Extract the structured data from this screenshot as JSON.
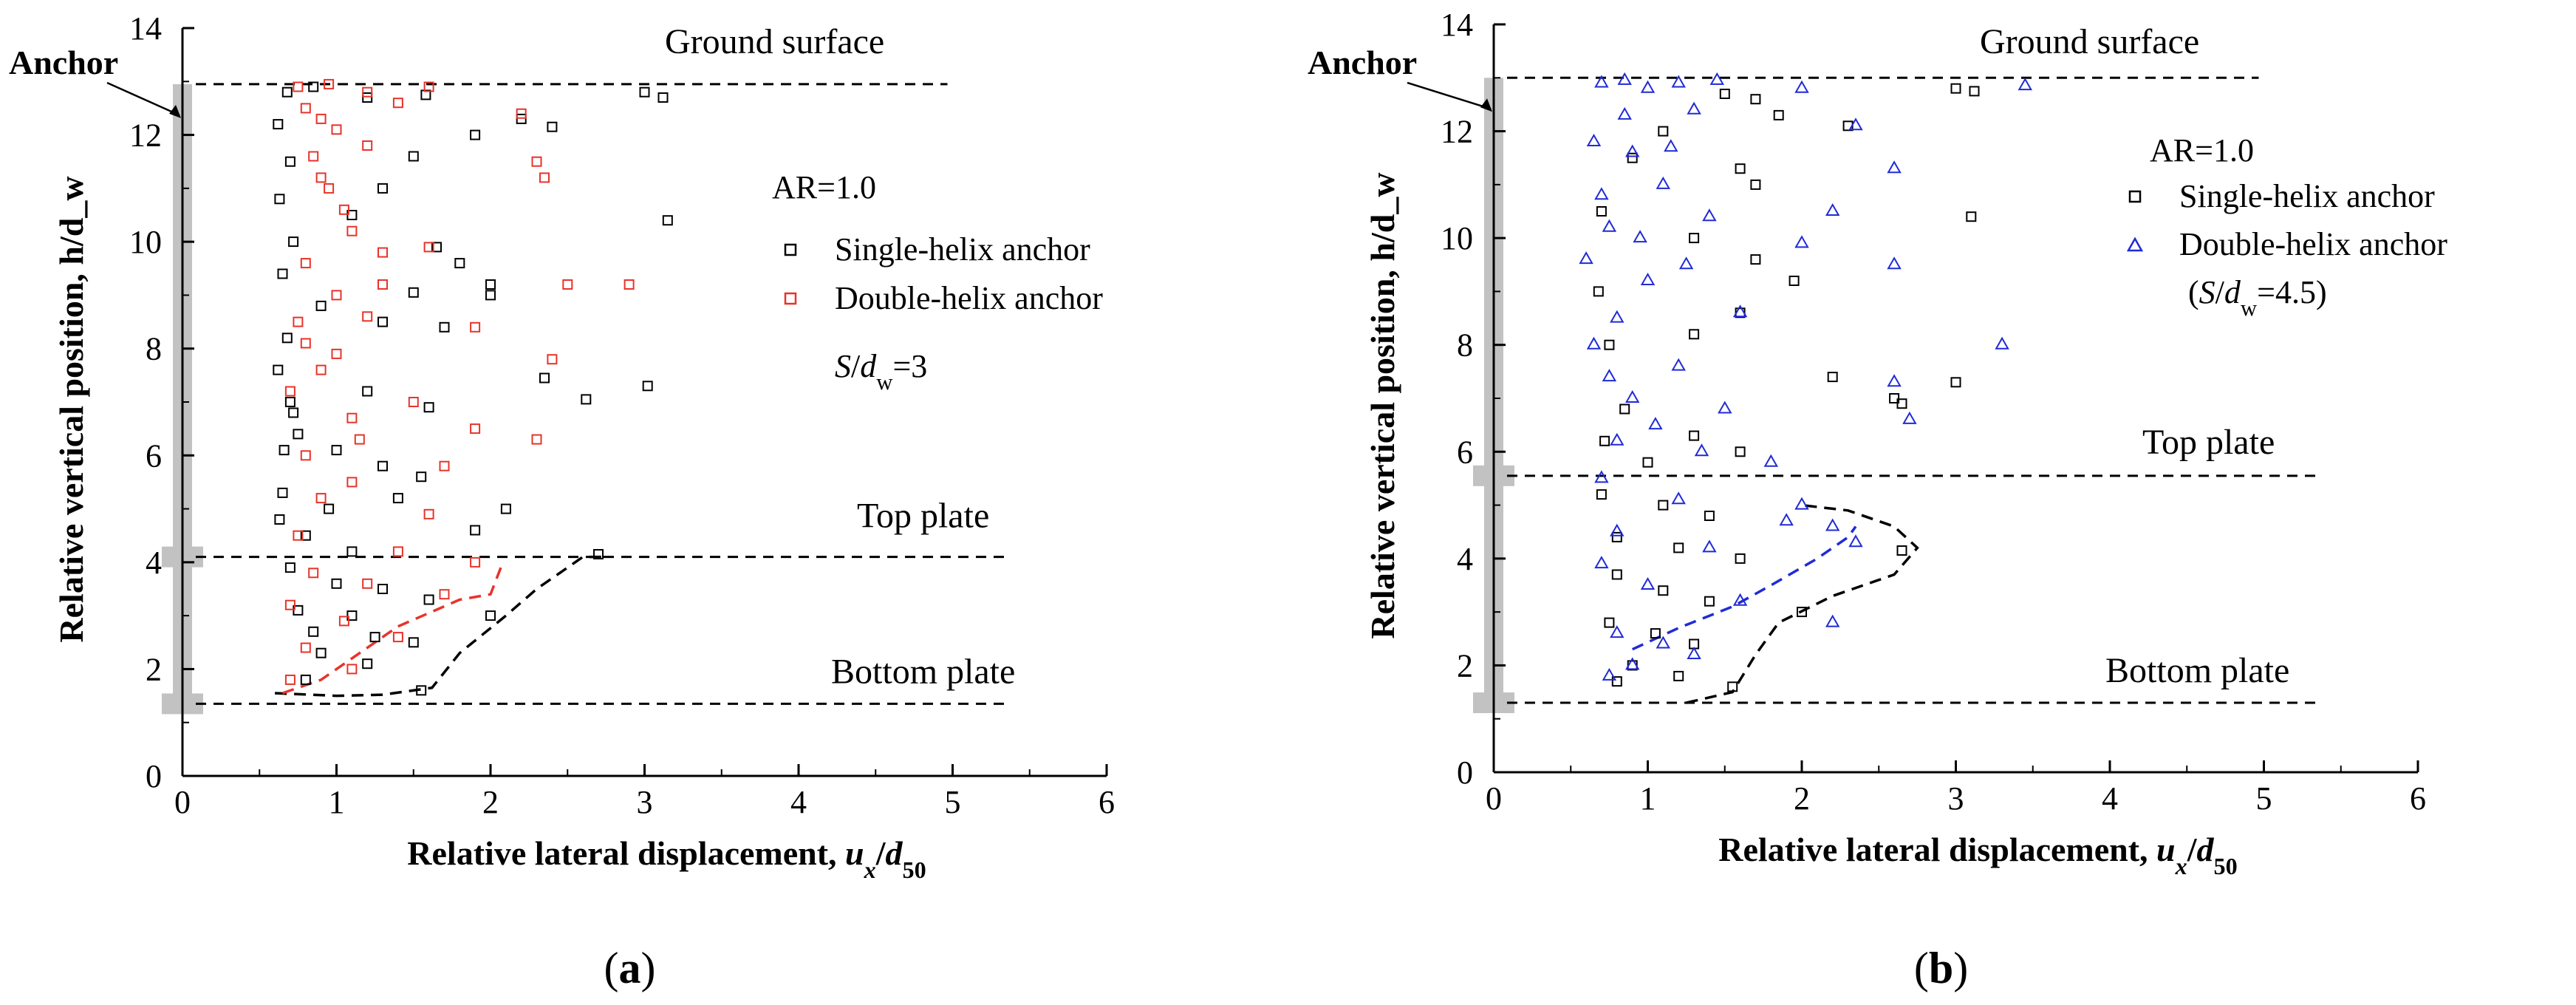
{
  "chart_data": [
    {
      "panel": "(a)",
      "type": "scatter",
      "xlabel": "Relative lateral displacement, u_x/d_50",
      "ylabel": "Relative vertical position, h/d_w",
      "xlim": [
        0,
        6
      ],
      "ylim": [
        0,
        14
      ],
      "xticks": [
        0,
        1,
        2,
        3,
        4,
        5,
        6
      ],
      "yticks": [
        0,
        2,
        4,
        6,
        8,
        10,
        12,
        14
      ],
      "annotations": {
        "anchor": "Anchor",
        "ground": "Ground surface",
        "top_plate": "Top plate",
        "bottom_plate": "Bottom plate",
        "ar": "AR=1.0",
        "spacing": "S/d_w=3"
      },
      "levels": {
        "ground": 12.95,
        "top_plate": 4.1,
        "bottom_plate": 1.35
      },
      "series": [
        {
          "name": "Single-helix anchor",
          "marker": "square",
          "color": "#000000",
          "envelope": [
            [
              0.6,
              1.55
            ],
            [
              1.0,
              1.5
            ],
            [
              1.3,
              1.52
            ],
            [
              1.62,
              1.65
            ],
            [
              1.8,
              2.3
            ],
            [
              2.1,
              3.0
            ],
            [
              2.3,
              3.5
            ],
            [
              2.6,
              4.1
            ],
            [
              2.75,
              4.1
            ]
          ],
          "points": [
            [
              0.68,
              12.8
            ],
            [
              0.85,
              12.9
            ],
            [
              1.2,
              12.7
            ],
            [
              1.58,
              12.75
            ],
            [
              2.2,
              12.3
            ],
            [
              2.4,
              12.15
            ],
            [
              3.0,
              12.8
            ],
            [
              3.12,
              12.7
            ],
            [
              1.9,
              12.0
            ],
            [
              1.5,
              11.6
            ],
            [
              1.3,
              11.0
            ],
            [
              1.1,
              10.5
            ],
            [
              3.15,
              10.4
            ],
            [
              1.65,
              9.9
            ],
            [
              1.8,
              9.6
            ],
            [
              2.0,
              9.2
            ],
            [
              1.5,
              9.05
            ],
            [
              2.0,
              9.0
            ],
            [
              1.3,
              8.5
            ],
            [
              1.7,
              8.4
            ],
            [
              0.9,
              8.8
            ],
            [
              2.35,
              7.45
            ],
            [
              2.62,
              7.05
            ],
            [
              3.02,
              7.3
            ],
            [
              0.7,
              7.0
            ],
            [
              1.2,
              7.2
            ],
            [
              1.6,
              6.9
            ],
            [
              0.75,
              6.4
            ],
            [
              1.0,
              6.1
            ],
            [
              1.3,
              5.8
            ],
            [
              1.55,
              5.6
            ],
            [
              0.65,
              5.3
            ],
            [
              0.95,
              5.0
            ],
            [
              1.4,
              5.2
            ],
            [
              2.1,
              5.0
            ],
            [
              1.9,
              4.6
            ],
            [
              0.8,
              4.5
            ],
            [
              1.1,
              4.2
            ],
            [
              0.7,
              3.9
            ],
            [
              1.0,
              3.6
            ],
            [
              1.3,
              3.5
            ],
            [
              1.6,
              3.3
            ],
            [
              0.75,
              3.1
            ],
            [
              1.1,
              3.0
            ],
            [
              2.0,
              3.0
            ],
            [
              0.85,
              2.7
            ],
            [
              1.25,
              2.6
            ],
            [
              1.5,
              2.5
            ],
            [
              0.9,
              2.3
            ],
            [
              1.2,
              2.1
            ],
            [
              0.8,
              1.8
            ],
            [
              1.55,
              1.6
            ],
            [
              2.7,
              4.15
            ],
            [
              0.62,
              12.2
            ],
            [
              0.7,
              11.5
            ],
            [
              0.63,
              10.8
            ],
            [
              0.72,
              10.0
            ],
            [
              0.65,
              9.4
            ],
            [
              0.68,
              8.2
            ],
            [
              0.62,
              7.6
            ],
            [
              0.72,
              6.8
            ],
            [
              0.66,
              6.1
            ],
            [
              0.63,
              4.8
            ]
          ]
        },
        {
          "name": "Double-helix anchor",
          "marker": "square",
          "color": "#e8332a",
          "envelope": [
            [
              0.65,
              1.55
            ],
            [
              0.9,
              1.8
            ],
            [
              1.1,
              2.2
            ],
            [
              1.4,
              2.8
            ],
            [
              1.8,
              3.3
            ],
            [
              2.0,
              3.4
            ],
            [
              2.08,
              4.0
            ]
          ],
          "points": [
            [
              0.75,
              12.9
            ],
            [
              0.95,
              12.95
            ],
            [
              1.2,
              12.8
            ],
            [
              1.6,
              12.9
            ],
            [
              1.4,
              12.6
            ],
            [
              2.2,
              12.4
            ],
            [
              2.3,
              11.5
            ],
            [
              2.35,
              11.2
            ],
            [
              1.2,
              11.8
            ],
            [
              0.9,
              11.2
            ],
            [
              1.05,
              10.6
            ],
            [
              1.3,
              9.8
            ],
            [
              1.6,
              9.9
            ],
            [
              2.5,
              9.2
            ],
            [
              2.9,
              9.2
            ],
            [
              1.0,
              9.0
            ],
            [
              1.9,
              8.4
            ],
            [
              2.4,
              7.8
            ],
            [
              0.8,
              8.1
            ],
            [
              1.2,
              8.6
            ],
            [
              0.9,
              7.6
            ],
            [
              1.5,
              7.0
            ],
            [
              1.1,
              6.7
            ],
            [
              1.9,
              6.5
            ],
            [
              2.3,
              6.3
            ],
            [
              0.8,
              6.0
            ],
            [
              1.7,
              5.8
            ],
            [
              1.1,
              5.5
            ],
            [
              0.9,
              5.2
            ],
            [
              1.6,
              4.9
            ],
            [
              0.75,
              4.5
            ],
            [
              1.4,
              4.2
            ],
            [
              1.9,
              4.0
            ],
            [
              0.85,
              3.8
            ],
            [
              1.2,
              3.6
            ],
            [
              1.7,
              3.4
            ],
            [
              0.7,
              3.2
            ],
            [
              1.05,
              2.9
            ],
            [
              1.4,
              2.6
            ],
            [
              0.8,
              2.4
            ],
            [
              1.1,
              2.0
            ],
            [
              0.7,
              1.8
            ],
            [
              0.8,
              12.5
            ],
            [
              0.9,
              12.3
            ],
            [
              1.0,
              12.1
            ],
            [
              0.85,
              11.6
            ],
            [
              0.95,
              11.0
            ],
            [
              1.1,
              10.2
            ],
            [
              0.8,
              9.6
            ],
            [
              1.3,
              9.2
            ],
            [
              0.75,
              8.5
            ],
            [
              1.0,
              7.9
            ],
            [
              0.7,
              7.2
            ],
            [
              1.15,
              6.3
            ]
          ]
        }
      ]
    },
    {
      "panel": "(b)",
      "type": "scatter",
      "xlabel": "Relative lateral displacement, u_x/d_50",
      "ylabel": "Relative vertical position, h/d_w",
      "xlim": [
        0,
        6
      ],
      "ylim": [
        0,
        14
      ],
      "xticks": [
        0,
        1,
        2,
        3,
        4,
        5,
        6
      ],
      "yticks": [
        0,
        2,
        4,
        6,
        8,
        10,
        12,
        14
      ],
      "annotations": {
        "anchor": "Anchor",
        "ground": "Ground surface",
        "top_plate": "Top plate",
        "bottom_plate": "Bottom plate",
        "ar": "AR=1.0",
        "spacing": "(S/d_w=4.5)"
      },
      "levels": {
        "ground": 13.0,
        "top_plate": 5.55,
        "bottom_plate": 1.3
      },
      "series": [
        {
          "name": "Single-helix anchor",
          "marker": "square",
          "color": "#000000",
          "envelope": [
            [
              1.25,
              1.3
            ],
            [
              1.55,
              1.5
            ],
            [
              1.7,
              2.2
            ],
            [
              1.85,
              2.8
            ],
            [
              2.2,
              3.3
            ],
            [
              2.6,
              3.7
            ],
            [
              2.75,
              4.2
            ],
            [
              2.6,
              4.6
            ],
            [
              2.3,
              4.9
            ],
            [
              2.0,
              5.0
            ]
          ],
          "points": [
            [
              1.5,
              12.7
            ],
            [
              1.7,
              12.6
            ],
            [
              1.85,
              12.3
            ],
            [
              2.3,
              12.1
            ],
            [
              3.0,
              12.8
            ],
            [
              3.12,
              12.75
            ],
            [
              1.6,
              11.3
            ],
            [
              1.7,
              11.0
            ],
            [
              3.1,
              10.4
            ],
            [
              1.3,
              10.0
            ],
            [
              1.7,
              9.6
            ],
            [
              1.95,
              9.2
            ],
            [
              1.6,
              8.6
            ],
            [
              1.3,
              8.2
            ],
            [
              2.6,
              7.0
            ],
            [
              2.65,
              6.9
            ],
            [
              3.0,
              7.3
            ],
            [
              2.2,
              7.4
            ],
            [
              1.3,
              6.3
            ],
            [
              1.6,
              6.0
            ],
            [
              1.0,
              5.8
            ],
            [
              0.7,
              5.2
            ],
            [
              1.1,
              5.0
            ],
            [
              1.4,
              4.8
            ],
            [
              0.8,
              4.4
            ],
            [
              1.2,
              4.2
            ],
            [
              1.6,
              4.0
            ],
            [
              2.65,
              4.15
            ],
            [
              0.8,
              3.7
            ],
            [
              1.1,
              3.4
            ],
            [
              1.4,
              3.2
            ],
            [
              2.0,
              3.0
            ],
            [
              0.75,
              2.8
            ],
            [
              1.05,
              2.6
            ],
            [
              1.3,
              2.4
            ],
            [
              0.9,
              2.0
            ],
            [
              1.2,
              1.8
            ],
            [
              0.8,
              1.7
            ],
            [
              1.55,
              1.6
            ],
            [
              0.7,
              10.5
            ],
            [
              0.9,
              11.5
            ],
            [
              1.1,
              12.0
            ],
            [
              0.68,
              9.0
            ],
            [
              0.75,
              8.0
            ],
            [
              0.85,
              6.8
            ],
            [
              0.72,
              6.2
            ]
          ]
        },
        {
          "name": "Double-helix anchor",
          "marker": "triangle",
          "color": "#1f2bd6",
          "envelope": [
            [
              0.9,
              2.3
            ],
            [
              1.2,
              2.7
            ],
            [
              1.55,
              3.1
            ],
            [
              1.8,
              3.5
            ],
            [
              2.1,
              4.0
            ],
            [
              2.3,
              4.4
            ],
            [
              2.35,
              4.6
            ]
          ],
          "points": [
            [
              0.7,
              12.9
            ],
            [
              0.85,
              12.95
            ],
            [
              1.0,
              12.8
            ],
            [
              1.2,
              12.9
            ],
            [
              1.45,
              12.95
            ],
            [
              2.0,
              12.8
            ],
            [
              3.45,
              12.85
            ],
            [
              1.3,
              12.4
            ],
            [
              2.35,
              12.1
            ],
            [
              2.6,
              11.3
            ],
            [
              0.9,
              11.6
            ],
            [
              1.1,
              11.0
            ],
            [
              2.2,
              10.5
            ],
            [
              1.4,
              10.4
            ],
            [
              2.6,
              9.5
            ],
            [
              2.0,
              9.9
            ],
            [
              1.0,
              9.2
            ],
            [
              1.6,
              8.6
            ],
            [
              0.8,
              8.5
            ],
            [
              3.3,
              8.0
            ],
            [
              2.6,
              7.3
            ],
            [
              2.7,
              6.6
            ],
            [
              1.2,
              7.6
            ],
            [
              0.9,
              7.0
            ],
            [
              1.5,
              6.8
            ],
            [
              0.8,
              6.2
            ],
            [
              1.35,
              6.0
            ],
            [
              1.8,
              5.8
            ],
            [
              0.7,
              5.5
            ],
            [
              1.2,
              5.1
            ],
            [
              2.0,
              5.0
            ],
            [
              1.9,
              4.7
            ],
            [
              2.2,
              4.6
            ],
            [
              2.35,
              4.3
            ],
            [
              0.8,
              4.5
            ],
            [
              1.4,
              4.2
            ],
            [
              0.7,
              3.9
            ],
            [
              1.0,
              3.5
            ],
            [
              1.6,
              3.2
            ],
            [
              2.2,
              2.8
            ],
            [
              0.8,
              2.6
            ],
            [
              1.1,
              2.4
            ],
            [
              0.9,
              2.0
            ],
            [
              1.3,
              2.2
            ],
            [
              0.75,
              1.8
            ],
            [
              0.65,
              11.8
            ],
            [
              0.7,
              10.8
            ],
            [
              0.75,
              10.2
            ],
            [
              0.6,
              9.6
            ],
            [
              0.95,
              10.0
            ],
            [
              0.65,
              8.0
            ],
            [
              0.75,
              7.4
            ],
            [
              1.05,
              6.5
            ],
            [
              0.85,
              12.3
            ],
            [
              1.15,
              11.7
            ],
            [
              1.25,
              9.5
            ]
          ]
        }
      ]
    }
  ]
}
